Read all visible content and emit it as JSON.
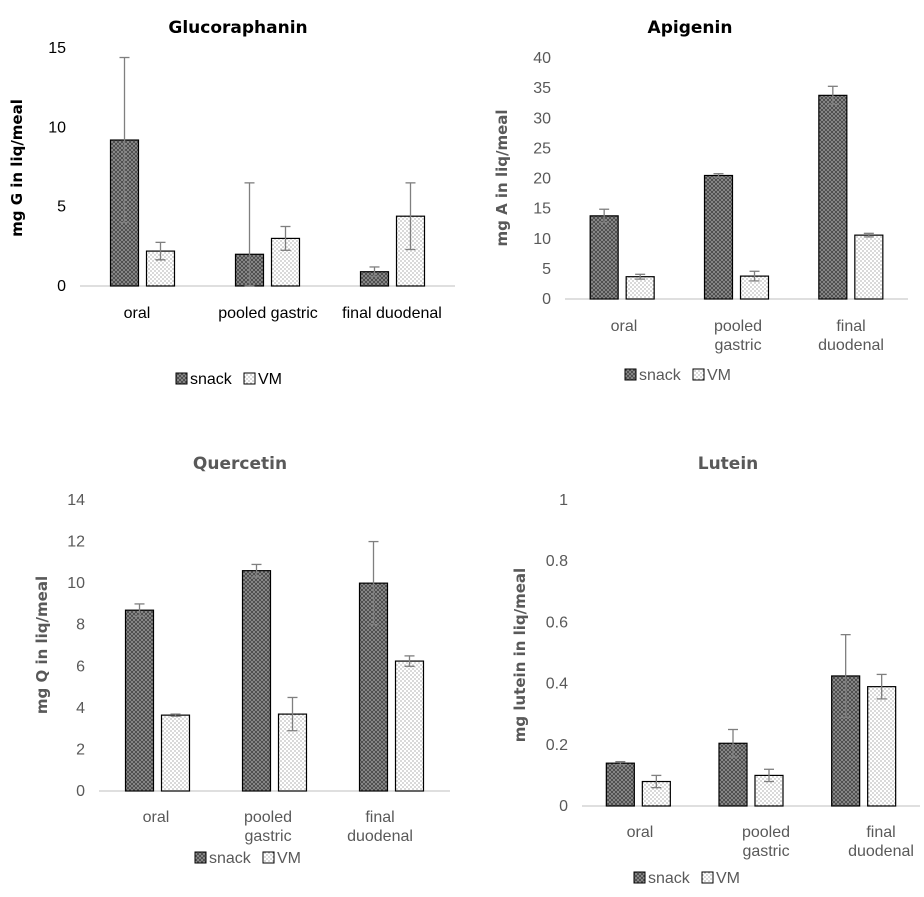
{
  "colors": {
    "axis": "#bfbfbf",
    "bar_outline": "#000000",
    "error_bar": "#7f7f7f",
    "text": "#595959",
    "title_dark": "#000000",
    "title_grey": "#595959"
  },
  "legend": {
    "snack": "snack",
    "vm": "VM"
  },
  "chart_data": [
    {
      "type": "bar",
      "title": "Glucoraphanin",
      "ylabel": "mg G in liq/meal",
      "ylim": [
        0,
        15
      ],
      "yticks": [
        0,
        5,
        10,
        15
      ],
      "categories": [
        "oral",
        "pooled gastric",
        "final duodenal"
      ],
      "series": [
        {
          "name": "snack",
          "values": [
            9.2,
            2.0,
            0.9
          ],
          "errors": [
            5.2,
            4.5,
            0.3
          ]
        },
        {
          "name": "VM",
          "values": [
            2.2,
            3.0,
            4.4
          ],
          "errors": [
            0.55,
            0.75,
            2.1
          ]
        }
      ],
      "legend_position": "bottom"
    },
    {
      "type": "bar",
      "title": "Apigenin",
      "ylabel": "mg A in liq/meal",
      "ylim": [
        0,
        40
      ],
      "yticks": [
        0,
        5,
        10,
        15,
        20,
        25,
        30,
        35,
        40
      ],
      "categories": [
        "oral",
        "pooled gastric",
        "final duodenal"
      ],
      "series": [
        {
          "name": "snack",
          "values": [
            13.8,
            20.5,
            33.8
          ],
          "errors": [
            1.1,
            0.3,
            1.5
          ]
        },
        {
          "name": "VM",
          "values": [
            3.7,
            3.8,
            10.6
          ],
          "errors": [
            0.4,
            0.8,
            0.3
          ]
        }
      ],
      "legend_position": "bottom"
    },
    {
      "type": "bar",
      "title": "Quercetin",
      "ylabel": "mg Q in liq/meal",
      "ylim": [
        0,
        14
      ],
      "yticks": [
        0,
        2,
        4,
        6,
        8,
        10,
        12,
        14
      ],
      "categories": [
        "oral",
        "pooled gastric",
        "final duodenal"
      ],
      "series": [
        {
          "name": "snack",
          "values": [
            8.7,
            10.6,
            10.0
          ],
          "errors": [
            0.3,
            0.3,
            2.0
          ]
        },
        {
          "name": "VM",
          "values": [
            3.65,
            3.7,
            6.25
          ],
          "errors": [
            0.05,
            0.8,
            0.25
          ]
        }
      ],
      "legend_position": "bottom"
    },
    {
      "type": "bar",
      "title": "Lutein",
      "ylabel": "mg lutein in liq/meal",
      "ylim": [
        0,
        1
      ],
      "yticks": [
        0,
        0.2,
        0.4,
        0.6,
        0.8,
        1
      ],
      "categories": [
        "oral",
        "pooled gastric",
        "final duodenal"
      ],
      "series": [
        {
          "name": "snack",
          "values": [
            0.14,
            0.205,
            0.425
          ],
          "errors": [
            0.005,
            0.045,
            0.135
          ]
        },
        {
          "name": "VM",
          "values": [
            0.08,
            0.1,
            0.39
          ],
          "errors": [
            0.02,
            0.02,
            0.04
          ]
        }
      ],
      "legend_position": "bottom"
    }
  ]
}
